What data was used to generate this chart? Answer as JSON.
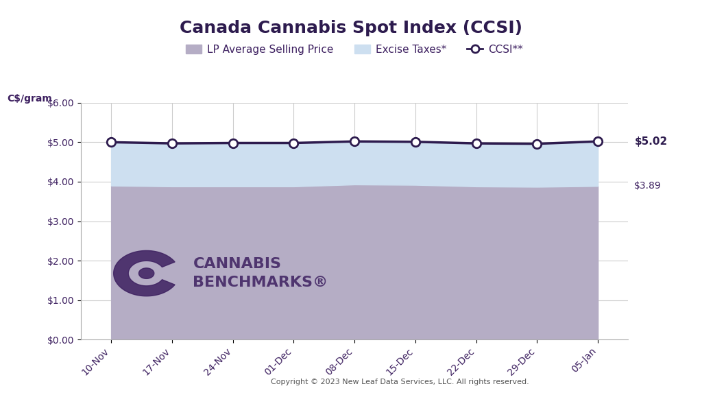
{
  "title": "Canada Cannabis Spot Index (CCSI)",
  "ylabel": "C$/gram",
  "copyright": "Copyright © 2023 New Leaf Data Services, LLC. All rights reserved.",
  "x_labels": [
    "10-Nov",
    "17-Nov",
    "24-Nov",
    "01-Dec",
    "08-Dec",
    "15-Dec",
    "22-Dec",
    "29-Dec",
    "05-Jan"
  ],
  "ccsi_values": [
    5.0,
    4.97,
    4.98,
    4.98,
    5.02,
    5.01,
    4.97,
    4.96,
    5.02
  ],
  "lp_avg_values": [
    3.9,
    3.88,
    3.88,
    3.88,
    3.93,
    3.92,
    3.88,
    3.87,
    3.89
  ],
  "excise_top_values": [
    5.0,
    4.97,
    4.98,
    4.98,
    5.02,
    5.01,
    4.97,
    4.96,
    5.02
  ],
  "ylim": [
    0.0,
    6.0
  ],
  "yticks": [
    0.0,
    1.0,
    2.0,
    3.0,
    4.0,
    5.0,
    6.0
  ],
  "ytick_labels": [
    "$0.00",
    "$1.00",
    "$2.00",
    "$3.00",
    "$4.00",
    "$5.00",
    "$6.00"
  ],
  "lp_color": "#b5adc5",
  "excise_color": "#cddff0",
  "ccsi_line_color": "#2d1b4e",
  "ccsi_marker_face": "#ffffff",
  "ccsi_marker_edge": "#2d1b4e",
  "grid_color": "#cccccc",
  "bg_color": "#ffffff",
  "annotation_ccsi": "$5.02",
  "annotation_lp": "$3.89",
  "legend_lp": "LP Average Selling Price",
  "legend_excise": "Excise Taxes*",
  "legend_ccsi": "CCSI**",
  "title_color": "#2d1b4e",
  "label_color": "#3d2060",
  "watermark_color": "#3d2060",
  "watermark_text_line1": "CANNABIS",
  "watermark_text_line2": "BENCHMARKS®"
}
